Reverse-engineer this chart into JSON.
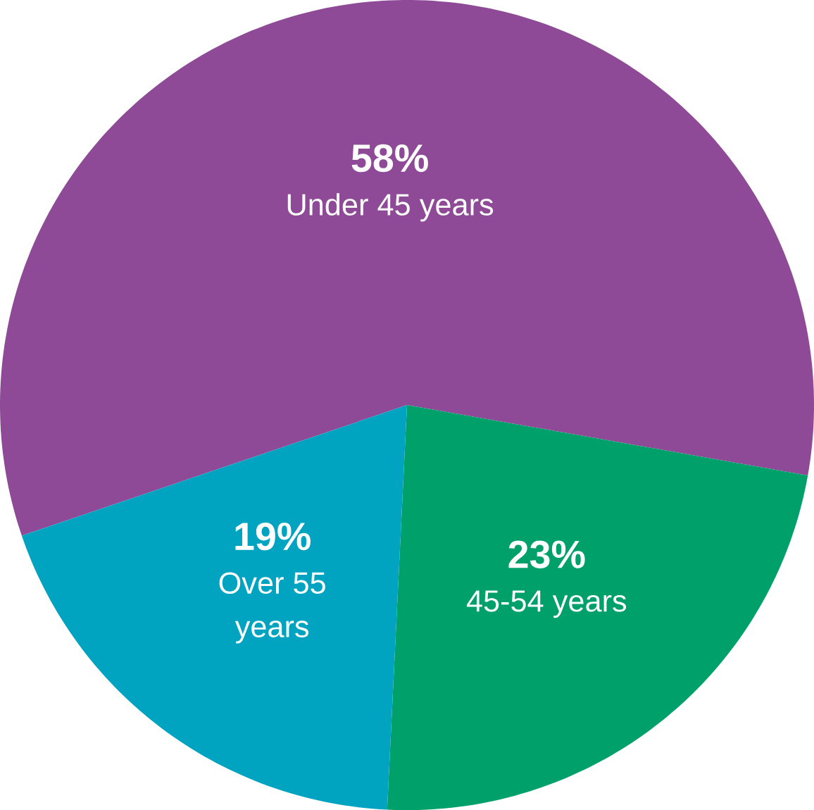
{
  "chart_data": {
    "type": "pie",
    "categories": [
      "Under 45 years",
      "45-54 years",
      "Over 55 years"
    ],
    "values": [
      58,
      23,
      19
    ],
    "colors": [
      "#8e4a97",
      "#00a06a",
      "#00a3c0"
    ],
    "value_labels": [
      "58%",
      "23%",
      "19%"
    ]
  }
}
